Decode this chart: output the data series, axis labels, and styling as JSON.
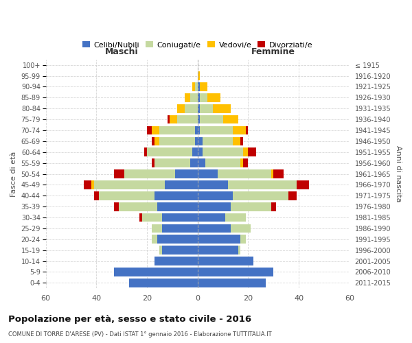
{
  "age_groups": [
    "0-4",
    "5-9",
    "10-14",
    "15-19",
    "20-24",
    "25-29",
    "30-34",
    "35-39",
    "40-44",
    "45-49",
    "50-54",
    "55-59",
    "60-64",
    "65-69",
    "70-74",
    "75-79",
    "80-84",
    "85-89",
    "90-94",
    "95-99",
    "100+"
  ],
  "birth_years": [
    "2011-2015",
    "2006-2010",
    "2001-2005",
    "1996-2000",
    "1991-1995",
    "1986-1990",
    "1981-1985",
    "1976-1980",
    "1971-1975",
    "1966-1970",
    "1961-1965",
    "1956-1960",
    "1951-1955",
    "1946-1950",
    "1941-1945",
    "1936-1940",
    "1931-1935",
    "1926-1930",
    "1921-1925",
    "1916-1920",
    "≤ 1915"
  ],
  "male_celibe": [
    27,
    33,
    17,
    14,
    16,
    14,
    14,
    16,
    17,
    13,
    9,
    3,
    2,
    1,
    1,
    0,
    0,
    0,
    0,
    0,
    0
  ],
  "male_coniugato": [
    0,
    0,
    0,
    1,
    2,
    4,
    8,
    15,
    22,
    28,
    20,
    14,
    18,
    14,
    14,
    8,
    5,
    3,
    1,
    0,
    0
  ],
  "male_vedovo": [
    0,
    0,
    0,
    0,
    0,
    0,
    0,
    0,
    0,
    1,
    0,
    0,
    0,
    2,
    3,
    3,
    3,
    2,
    1,
    0,
    0
  ],
  "male_divorziato": [
    0,
    0,
    0,
    0,
    0,
    0,
    1,
    2,
    2,
    3,
    4,
    1,
    1,
    1,
    2,
    1,
    0,
    0,
    0,
    0,
    0
  ],
  "female_celibe": [
    27,
    30,
    22,
    16,
    17,
    13,
    11,
    13,
    14,
    12,
    8,
    3,
    2,
    2,
    1,
    1,
    1,
    1,
    1,
    0,
    0
  ],
  "female_coniugato": [
    0,
    0,
    0,
    1,
    2,
    8,
    8,
    16,
    22,
    27,
    21,
    14,
    16,
    12,
    13,
    9,
    5,
    3,
    0,
    0,
    0
  ],
  "female_vedovo": [
    0,
    0,
    0,
    0,
    0,
    0,
    0,
    0,
    0,
    0,
    1,
    1,
    2,
    3,
    5,
    6,
    7,
    5,
    3,
    1,
    0
  ],
  "female_divorziato": [
    0,
    0,
    0,
    0,
    0,
    0,
    0,
    2,
    3,
    5,
    4,
    2,
    3,
    1,
    1,
    0,
    0,
    0,
    0,
    0,
    0
  ],
  "color_celibe": "#4472c4",
  "color_coniugato": "#c5d9a0",
  "color_vedovo": "#ffc000",
  "color_divorziato": "#c00000",
  "title": "Popolazione per età, sesso e stato civile - 2016",
  "subtitle": "COMUNE DI TORRE D'ARESE (PV) - Dati ISTAT 1° gennaio 2016 - Elaborazione TUTTITALIA.IT",
  "xlabel_left": "Maschi",
  "xlabel_right": "Femmine",
  "ylabel_left": "Fasce di età",
  "ylabel_right": "Anni di nascita",
  "xlim": 60,
  "bg_color": "#ffffff",
  "grid_color": "#cccccc"
}
